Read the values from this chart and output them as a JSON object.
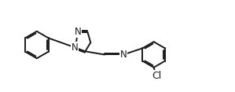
{
  "bg_color": "#ffffff",
  "line_color": "#1a1a1a",
  "line_width": 1.4,
  "font_size": 8.5,
  "figsize": [
    2.99,
    1.17
  ],
  "dpi": 100,
  "xlim": [
    0,
    10
  ],
  "ylim": [
    0,
    3.9
  ]
}
